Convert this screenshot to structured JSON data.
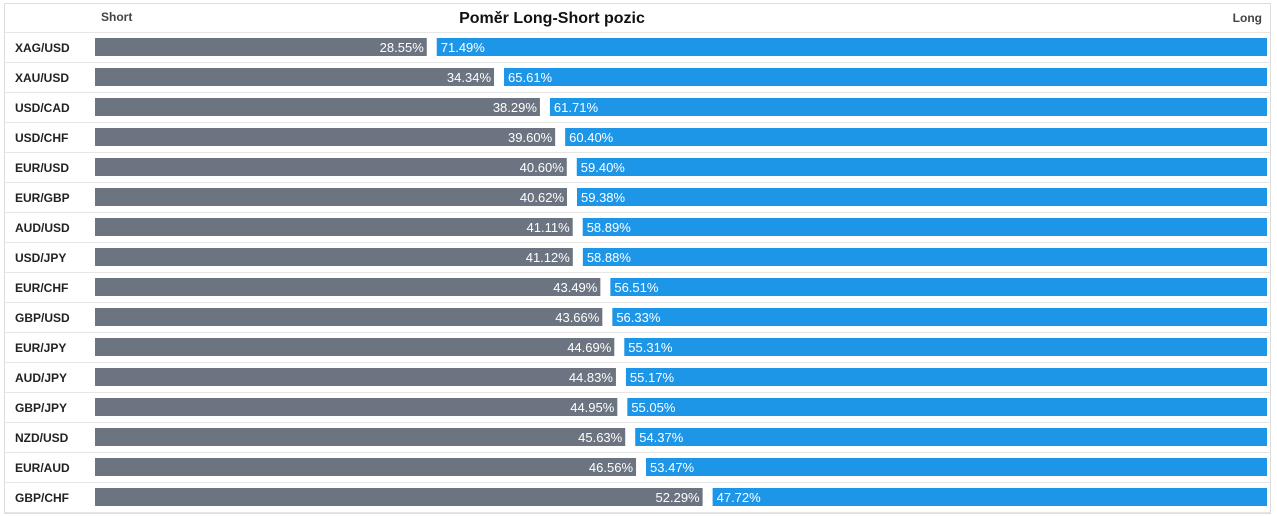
{
  "chart_data": {
    "type": "bar",
    "title": "Poměr Long-Short pozic",
    "left_header": "Short",
    "right_header": "Long",
    "categories": [
      "XAG/USD",
      "XAU/USD",
      "USD/CAD",
      "USD/CHF",
      "EUR/USD",
      "EUR/GBP",
      "AUD/USD",
      "USD/JPY",
      "EUR/CHF",
      "GBP/USD",
      "EUR/JPY",
      "AUD/JPY",
      "GBP/JPY",
      "NZD/USD",
      "EUR/AUD",
      "GBP/CHF"
    ],
    "series": [
      {
        "name": "Short",
        "color": "#6b7480",
        "values": [
          28.55,
          34.34,
          38.29,
          39.6,
          40.6,
          40.62,
          41.11,
          41.12,
          43.49,
          43.66,
          44.69,
          44.83,
          44.95,
          45.63,
          46.56,
          52.29
        ],
        "labels": [
          "28.55%",
          "34.34%",
          "38.29%",
          "39.60%",
          "40.60%",
          "40.62%",
          "41.11%",
          "41.12%",
          "43.49%",
          "43.66%",
          "44.69%",
          "44.83%",
          "44.95%",
          "45.63%",
          "46.56%",
          "52.29%"
        ]
      },
      {
        "name": "Long",
        "color": "#1e96e8",
        "values": [
          71.49,
          65.61,
          61.71,
          60.4,
          59.4,
          59.38,
          58.89,
          58.88,
          56.51,
          56.33,
          55.31,
          55.17,
          55.05,
          54.37,
          53.47,
          47.72
        ],
        "labels": [
          "71.49%",
          "65.61%",
          "61.71%",
          "60.40%",
          "59.40%",
          "59.38%",
          "58.89%",
          "58.88%",
          "56.51%",
          "56.33%",
          "55.31%",
          "55.17%",
          "55.05%",
          "54.37%",
          "53.47%",
          "47.72%"
        ]
      }
    ],
    "stacked": true,
    "xlim": [
      0,
      100
    ]
  }
}
